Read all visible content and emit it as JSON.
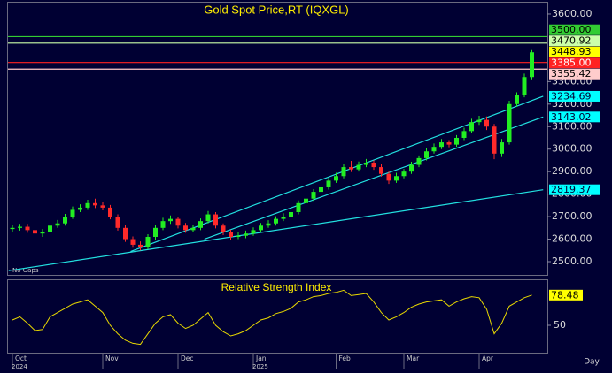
{
  "chart_data": [
    {
      "type": "candlestick",
      "title": "Gold Spot Price,RT (IQXGL)",
      "note": "No Gaps",
      "period": "Day",
      "categories": [
        "Oct",
        null,
        null,
        null,
        null,
        null,
        null,
        null,
        null,
        null,
        null,
        null,
        "Nov",
        null,
        null,
        null,
        null,
        null,
        null,
        null,
        null,
        null,
        "Dec",
        null,
        null,
        null,
        null,
        null,
        null,
        null,
        null,
        null,
        "Jan",
        null,
        null,
        null,
        null,
        null,
        null,
        null,
        null,
        null,
        null,
        "Feb",
        null,
        null,
        null,
        null,
        null,
        null,
        null,
        null,
        "Mar",
        null,
        null,
        null,
        null,
        null,
        null,
        null,
        null,
        null,
        "Apr",
        null,
        null,
        null,
        null,
        null,
        null,
        null
      ],
      "years": [
        "2024",
        null,
        null,
        null,
        null,
        null,
        null,
        null,
        null,
        null,
        null,
        null,
        null,
        null,
        null,
        null,
        null,
        null,
        null,
        null,
        null,
        null,
        null,
        null,
        null,
        null,
        null,
        null,
        null,
        null,
        null,
        null,
        "2025",
        null,
        null,
        null,
        null,
        null,
        null,
        null,
        null,
        null,
        null,
        null,
        null,
        null,
        null,
        null,
        null,
        null,
        null,
        null,
        null,
        null,
        null,
        null,
        null,
        null,
        null,
        null,
        null,
        null,
        null,
        null,
        null,
        null,
        null,
        null,
        null,
        null
      ],
      "open": [
        2645,
        2650,
        2655,
        2640,
        2625,
        2630,
        2660,
        2670,
        2700,
        2730,
        2740,
        2760,
        2750,
        2740,
        2700,
        2650,
        2600,
        2575,
        2565,
        2610,
        2650,
        2680,
        2690,
        2660,
        2640,
        2650,
        2680,
        2710,
        2660,
        2630,
        2610,
        2615,
        2625,
        2640,
        2660,
        2670,
        2690,
        2700,
        2720,
        2760,
        2780,
        2810,
        2830,
        2860,
        2880,
        2920,
        2910,
        2930,
        2940,
        2920,
        2890,
        2860,
        2880,
        2900,
        2930,
        2960,
        2990,
        3010,
        3030,
        3020,
        3050,
        3080,
        3120,
        3130,
        3100,
        2980,
        3030,
        3200,
        3240,
        3320
      ],
      "high": [
        2665,
        2668,
        2668,
        2652,
        2645,
        2672,
        2685,
        2712,
        2745,
        2755,
        2775,
        2780,
        2765,
        2752,
        2710,
        2662,
        2612,
        2590,
        2622,
        2662,
        2695,
        2705,
        2700,
        2672,
        2665,
        2692,
        2725,
        2720,
        2670,
        2642,
        2630,
        2638,
        2652,
        2672,
        2684,
        2702,
        2715,
        2734,
        2772,
        2795,
        2822,
        2845,
        2872,
        2895,
        2935,
        2948,
        2945,
        2956,
        2950,
        2932,
        2900,
        2895,
        2912,
        2944,
        2972,
        3004,
        3025,
        3045,
        3040,
        3062,
        3095,
        3135,
        3148,
        3145,
        3112,
        3045,
        3215,
        3252,
        3335,
        3440
      ],
      "low": [
        2632,
        2638,
        2628,
        2612,
        2610,
        2618,
        2650,
        2660,
        2690,
        2720,
        2730,
        2738,
        2728,
        2688,
        2638,
        2588,
        2562,
        2550,
        2555,
        2598,
        2640,
        2668,
        2648,
        2628,
        2630,
        2640,
        2670,
        2648,
        2618,
        2598,
        2600,
        2604,
        2615,
        2630,
        2650,
        2660,
        2680,
        2690,
        2710,
        2750,
        2770,
        2800,
        2820,
        2850,
        2870,
        2898,
        2900,
        2920,
        2908,
        2878,
        2845,
        2850,
        2870,
        2890,
        2920,
        2950,
        2980,
        3000,
        3008,
        3010,
        3040,
        3070,
        3108,
        3085,
        2955,
        2965,
        3020,
        3188,
        3230,
        3310
      ],
      "close": [
        2650,
        2655,
        2640,
        2625,
        2630,
        2660,
        2670,
        2700,
        2730,
        2740,
        2760,
        2750,
        2740,
        2700,
        2650,
        2600,
        2575,
        2565,
        2610,
        2650,
        2680,
        2690,
        2660,
        2640,
        2650,
        2680,
        2710,
        2660,
        2630,
        2610,
        2615,
        2625,
        2640,
        2660,
        2670,
        2690,
        2700,
        2720,
        2760,
        2780,
        2810,
        2830,
        2860,
        2880,
        2920,
        2910,
        2930,
        2940,
        2920,
        2890,
        2860,
        2880,
        2900,
        2930,
        2960,
        2990,
        3010,
        3030,
        3020,
        3050,
        3080,
        3120,
        3130,
        3100,
        2980,
        3030,
        3200,
        3240,
        3320,
        3430
      ],
      "up_color": "#22ee22",
      "down_color": "#ff2a2a",
      "ylim": [
        2445,
        3647
      ],
      "yticks": [
        {
          "value": 2500,
          "label": "2500.00"
        },
        {
          "value": 2600,
          "label": "2600.00"
        },
        {
          "value": 2700,
          "label": "2700.00"
        },
        {
          "value": 2800,
          "label": "2800.00"
        },
        {
          "value": 2900,
          "label": "2900.00"
        },
        {
          "value": 3000,
          "label": "3000.00"
        },
        {
          "value": 3100,
          "label": "3100.00"
        },
        {
          "value": 3200,
          "label": "3200.00"
        },
        {
          "value": 3300,
          "label": "3300.00"
        },
        {
          "value": 3600,
          "label": "3600.00"
        }
      ],
      "levels": [
        {
          "value": 3500,
          "label": "3500.00",
          "color": "#33cc33",
          "text_color": "#000000",
          "line": true
        },
        {
          "value": 3470.92,
          "label": "3470.92",
          "color": "#ccffaa",
          "text_color": "#000000",
          "line": true
        },
        {
          "value": 3448.93,
          "label": "3448.93",
          "color": "#ffff00",
          "text_color": "#000000",
          "line": false
        },
        {
          "value": 3385,
          "label": "3385.00",
          "color": "#ff2222",
          "text_color": "#ffffff",
          "line": true
        },
        {
          "value": 3355.42,
          "label": "3355.42",
          "color": "#ffcccc",
          "text_color": "#000000",
          "line": true
        }
      ],
      "trendlines": [
        {
          "x": [
            -0.5,
            70.5
          ],
          "y": [
            2460,
            2819.37
          ],
          "color": "#22e0e0"
        },
        {
          "x": [
            15.7,
            70.5
          ],
          "y": [
            2545,
            3234.69
          ],
          "color": "#22e0e0"
        },
        {
          "x": [
            25.5,
            70.5
          ],
          "y": [
            2600,
            3143.02
          ],
          "color": "#22e0e0"
        }
      ]
    },
    {
      "type": "line",
      "title": "Relative Strength Index",
      "color": "#e8d800",
      "values": [
        55,
        58,
        52,
        45,
        46,
        58,
        62,
        66,
        70,
        72,
        74,
        68,
        62,
        50,
        42,
        36,
        33,
        32,
        42,
        52,
        58,
        60,
        52,
        47,
        50,
        56,
        62,
        50,
        44,
        40,
        42,
        45,
        50,
        55,
        57,
        61,
        63,
        66,
        72,
        74,
        77,
        78,
        80,
        81,
        83,
        78,
        79,
        80,
        72,
        62,
        55,
        58,
        62,
        67,
        70,
        72,
        73,
        74,
        68,
        72,
        75,
        77,
        76,
        65,
        42,
        52,
        68,
        72,
        76,
        78.48
      ],
      "ylim": [
        25,
        90
      ],
      "yticks": [
        50
      ]
    }
  ]
}
